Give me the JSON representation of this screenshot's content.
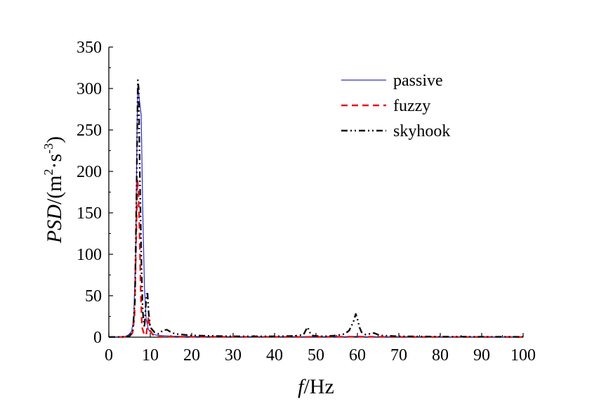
{
  "chart_data": {
    "type": "line",
    "xlabel": {
      "italic": "f",
      "rest": "/Hz"
    },
    "ylabel": {
      "italic": "PSD",
      "rest": "/(m",
      "sup1": "2",
      "mid": "·s",
      "sup2": "-3",
      "end": ")"
    },
    "xlim": [
      0,
      100
    ],
    "ylim": [
      0,
      350
    ],
    "xticks": [
      0,
      10,
      20,
      30,
      40,
      50,
      60,
      70,
      80,
      90,
      100
    ],
    "yticks": [
      0,
      50,
      100,
      150,
      200,
      250,
      300,
      350
    ],
    "grid": false,
    "legend_position": "top-right",
    "series": [
      {
        "name": "passive",
        "color": "#2b2bc8",
        "style": "solid",
        "points": [
          [
            0,
            0.3
          ],
          [
            2,
            0.4
          ],
          [
            3,
            0.6
          ],
          [
            4,
            1
          ],
          [
            4.5,
            2
          ],
          [
            5,
            4
          ],
          [
            5.5,
            7
          ],
          [
            6,
            22
          ],
          [
            6.5,
            105
          ],
          [
            6.8,
            250
          ],
          [
            7,
            303
          ],
          [
            7.3,
            290
          ],
          [
            7.8,
            268
          ],
          [
            8.2,
            150
          ],
          [
            8.6,
            60
          ],
          [
            9,
            22
          ],
          [
            9.5,
            10
          ],
          [
            10,
            6
          ],
          [
            11,
            3
          ],
          [
            12,
            2
          ],
          [
            14,
            1.5
          ],
          [
            17,
            1
          ],
          [
            20,
            0.8
          ],
          [
            30,
            0.6
          ],
          [
            40,
            0.5
          ],
          [
            50,
            0.5
          ],
          [
            58,
            0.6
          ],
          [
            60,
            1
          ],
          [
            62,
            0.6
          ],
          [
            70,
            0.4
          ],
          [
            80,
            0.3
          ],
          [
            100,
            0.2
          ]
        ]
      },
      {
        "name": "fuzzy",
        "color": "#e8141a",
        "style": "dashed",
        "points": [
          [
            0,
            0.2
          ],
          [
            3,
            0.3
          ],
          [
            4,
            0.5
          ],
          [
            5,
            1
          ],
          [
            5.7,
            5
          ],
          [
            6.2,
            25
          ],
          [
            6.6,
            120
          ],
          [
            6.9,
            190
          ],
          [
            7.1,
            180
          ],
          [
            7.4,
            130
          ],
          [
            7.7,
            55
          ],
          [
            8,
            12
          ],
          [
            8.5,
            4
          ],
          [
            9,
            2
          ],
          [
            9.6,
            25
          ],
          [
            10,
            8
          ],
          [
            10.6,
            3
          ],
          [
            12,
            1
          ],
          [
            15,
            0.6
          ],
          [
            20,
            0.5
          ],
          [
            30,
            0.4
          ],
          [
            40,
            0.4
          ],
          [
            50,
            0.4
          ],
          [
            60,
            0.6
          ],
          [
            70,
            0.3
          ],
          [
            80,
            0.3
          ],
          [
            100,
            0.2
          ]
        ]
      },
      {
        "name": "skyhook",
        "color": "#111111",
        "style": "dashdotdot",
        "points": [
          [
            0,
            0.2
          ],
          [
            3,
            0.3
          ],
          [
            4,
            0.5
          ],
          [
            5,
            1.5
          ],
          [
            5.8,
            8
          ],
          [
            6.3,
            45
          ],
          [
            6.7,
            180
          ],
          [
            7,
            310
          ],
          [
            7.2,
            300
          ],
          [
            7.5,
            190
          ],
          [
            7.9,
            80
          ],
          [
            8.2,
            30
          ],
          [
            8.6,
            12
          ],
          [
            9,
            45
          ],
          [
            9.3,
            55
          ],
          [
            9.6,
            30
          ],
          [
            10,
            12
          ],
          [
            11,
            6
          ],
          [
            12,
            4
          ],
          [
            13,
            8
          ],
          [
            14,
            9
          ],
          [
            15,
            6
          ],
          [
            16,
            4
          ],
          [
            18,
            3
          ],
          [
            20,
            2
          ],
          [
            25,
            1.5
          ],
          [
            30,
            1
          ],
          [
            35,
            1
          ],
          [
            40,
            1
          ],
          [
            45,
            1.5
          ],
          [
            47,
            3
          ],
          [
            47.5,
            8
          ],
          [
            48,
            12
          ],
          [
            48.5,
            6
          ],
          [
            49,
            2
          ],
          [
            50,
            1.5
          ],
          [
            52,
            1
          ],
          [
            55,
            2
          ],
          [
            57,
            4
          ],
          [
            58,
            8
          ],
          [
            59,
            18
          ],
          [
            59.6,
            28
          ],
          [
            60,
            22
          ],
          [
            60.5,
            12
          ],
          [
            61,
            6
          ],
          [
            62,
            3
          ],
          [
            63,
            4
          ],
          [
            64,
            5
          ],
          [
            65,
            3
          ],
          [
            66,
            2
          ],
          [
            68,
            1.5
          ],
          [
            70,
            1
          ],
          [
            75,
            0.8
          ],
          [
            80,
            0.6
          ],
          [
            90,
            0.5
          ],
          [
            100,
            0.4
          ]
        ]
      }
    ]
  }
}
